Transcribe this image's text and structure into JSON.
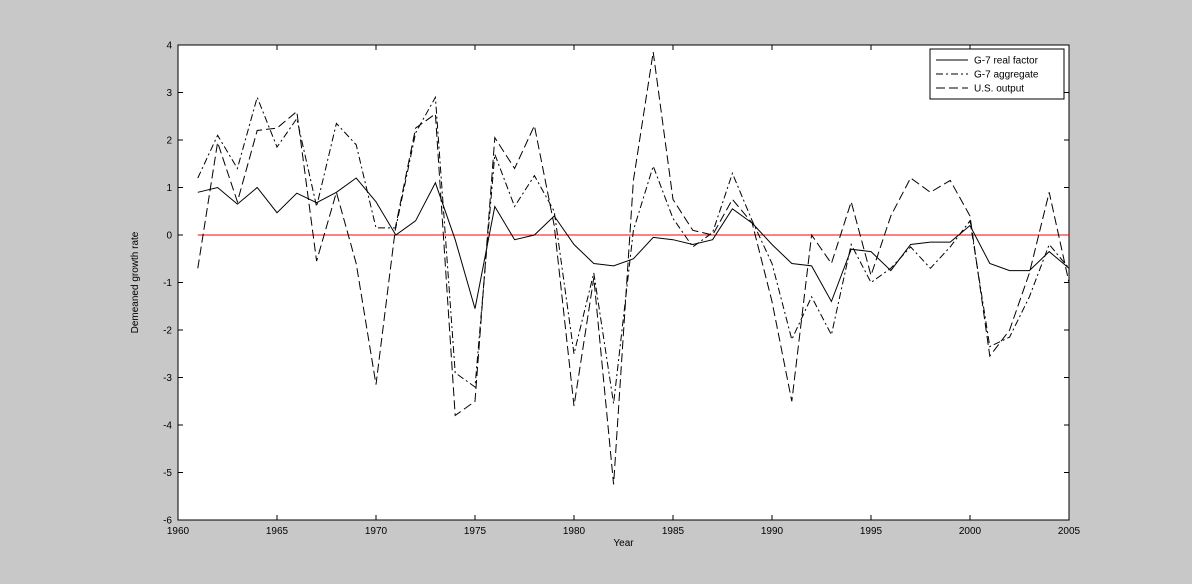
{
  "chart_data": {
    "type": "line",
    "xlabel": "Year",
    "ylabel": "Demeaned growth rate",
    "xlim": [
      1960,
      2005
    ],
    "ylim": [
      -6,
      4
    ],
    "xticks": [
      1960,
      1965,
      1970,
      1975,
      1980,
      1985,
      1990,
      1995,
      2000,
      2005
    ],
    "yticks": [
      -6,
      -5,
      -4,
      -3,
      -2,
      -1,
      0,
      1,
      2,
      3,
      4
    ],
    "legend_position": "top-right",
    "zero_line_color": "#ff0000",
    "x": [
      1961,
      1962,
      1963,
      1964,
      1965,
      1966,
      1967,
      1968,
      1969,
      1970,
      1971,
      1972,
      1973,
      1974,
      1975,
      1976,
      1977,
      1978,
      1979,
      1980,
      1981,
      1982,
      1983,
      1984,
      1985,
      1986,
      1987,
      1988,
      1989,
      1990,
      1991,
      1992,
      1993,
      1994,
      1995,
      1996,
      1997,
      1998,
      1999,
      2000,
      2001,
      2002,
      2003,
      2004,
      2005
    ],
    "series": [
      {
        "name": "G-7 real factor",
        "style": "solid",
        "values": [
          0.9,
          1.0,
          0.65,
          1.0,
          0.47,
          0.88,
          0.68,
          0.9,
          1.2,
          0.7,
          0.0,
          0.3,
          1.1,
          -0.1,
          -1.55,
          0.6,
          -0.1,
          0.0,
          0.4,
          -0.2,
          -0.6,
          -0.65,
          -0.5,
          -0.05,
          -0.1,
          -0.2,
          -0.1,
          0.55,
          0.25,
          -0.2,
          -0.6,
          -0.65,
          -1.4,
          -0.3,
          -0.35,
          -0.75,
          -0.2,
          -0.15,
          -0.15,
          0.2,
          -0.6,
          -0.75,
          -0.75,
          -0.35,
          -0.7
        ]
      },
      {
        "name": "G-7 aggregate",
        "style": "dashdot",
        "values": [
          1.2,
          2.1,
          1.4,
          2.9,
          1.85,
          2.45,
          0.6,
          2.35,
          1.9,
          0.15,
          0.15,
          2.15,
          2.9,
          -2.9,
          -3.2,
          1.7,
          0.6,
          1.25,
          0.5,
          -2.5,
          -0.8,
          -3.55,
          0.1,
          1.45,
          0.35,
          -0.25,
          0.05,
          1.3,
          0.3,
          -0.6,
          -2.2,
          -1.3,
          -2.1,
          -0.2,
          -1.0,
          -0.7,
          -0.25,
          -0.7,
          -0.25,
          0.3,
          -2.35,
          -2.15,
          -1.3,
          -0.2,
          -0.7
        ]
      },
      {
        "name": "U.S. output",
        "style": "dashed",
        "values": [
          -0.7,
          1.95,
          0.7,
          2.2,
          2.25,
          2.6,
          -0.55,
          0.9,
          -0.6,
          -3.15,
          0.2,
          2.25,
          2.55,
          -3.8,
          -3.5,
          2.05,
          1.4,
          2.3,
          0.2,
          -3.6,
          -0.9,
          -5.25,
          1.15,
          3.85,
          0.75,
          0.1,
          0.0,
          0.75,
          0.25,
          -1.4,
          -3.5,
          0.0,
          -0.6,
          0.7,
          -0.85,
          0.4,
          1.2,
          0.9,
          1.15,
          0.4,
          -2.55,
          -2.0,
          -0.8,
          0.9,
          -1.0
        ]
      }
    ]
  }
}
